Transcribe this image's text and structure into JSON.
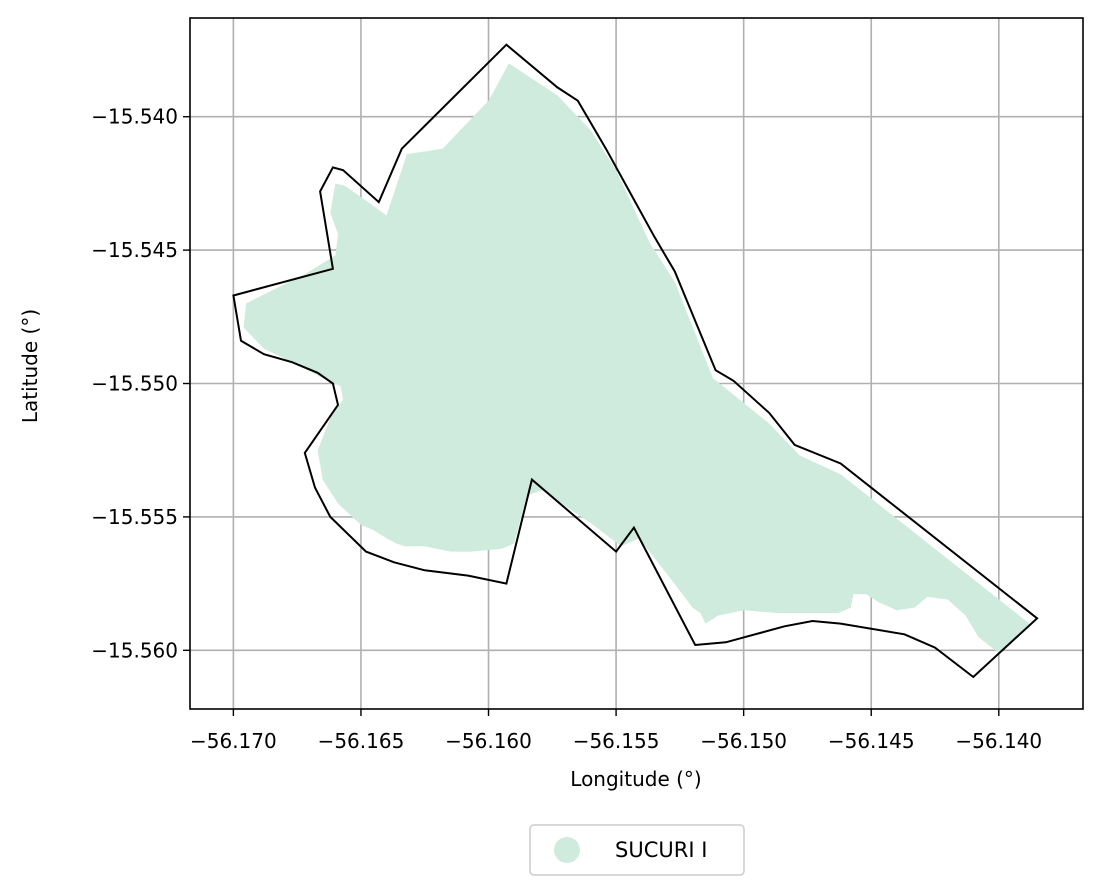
{
  "map": {
    "x_axis": {
      "label": "Longitude (°)",
      "range": [
        -56.1717,
        -56.1367
      ],
      "ticks": [
        {
          "value": -56.17,
          "label": "−56.170"
        },
        {
          "value": -56.165,
          "label": "−56.165"
        },
        {
          "value": -56.16,
          "label": "−56.160"
        },
        {
          "value": -56.155,
          "label": "−56.155"
        },
        {
          "value": -56.15,
          "label": "−56.150"
        },
        {
          "value": -56.145,
          "label": "−56.145"
        },
        {
          "value": -56.14,
          "label": "−56.140"
        }
      ]
    },
    "y_axis": {
      "label": "Latitude (°)",
      "range": [
        -15.5622,
        -15.5363
      ],
      "ticks": [
        {
          "value": -15.54,
          "label": "−15.540"
        },
        {
          "value": -15.545,
          "label": "−15.545"
        },
        {
          "value": -15.55,
          "label": "−15.550"
        },
        {
          "value": -15.555,
          "label": "−15.555"
        },
        {
          "value": -15.56,
          "label": "−15.560"
        }
      ]
    },
    "grid": true,
    "colors": {
      "fill": "#cfebdd",
      "boundary": "#000000",
      "grid": "#b0b0b0"
    },
    "legend": {
      "placement": "bottom-center",
      "entries": [
        {
          "label": "SUCURI I",
          "color": "#cfebdd"
        }
      ]
    },
    "boundary": [
      [
        -56.1593,
        -15.5373
      ],
      [
        -56.1573,
        -15.5389
      ],
      [
        -56.1565,
        -15.5394
      ],
      [
        -56.1554,
        -15.5412
      ],
      [
        -56.1535,
        -15.5445
      ],
      [
        -56.1527,
        -15.5458
      ],
      [
        -56.1511,
        -15.5495
      ],
      [
        -56.1504,
        -15.5499
      ],
      [
        -56.149,
        -15.5511
      ],
      [
        -56.148,
        -15.5523
      ],
      [
        -56.1462,
        -15.553
      ],
      [
        -56.1385,
        -15.5588
      ],
      [
        -56.141,
        -15.561
      ],
      [
        -56.1425,
        -15.5599
      ],
      [
        -56.1437,
        -15.5594
      ],
      [
        -56.1462,
        -15.559
      ],
      [
        -56.1473,
        -15.5589
      ],
      [
        -56.1484,
        -15.5591
      ],
      [
        -56.1507,
        -15.5597
      ],
      [
        -56.1519,
        -15.5598
      ],
      [
        -56.1543,
        -15.5554
      ],
      [
        -56.155,
        -15.5563
      ],
      [
        -56.1583,
        -15.5536
      ],
      [
        -56.1593,
        -15.5575
      ],
      [
        -56.1608,
        -15.5572
      ],
      [
        -56.1625,
        -15.557
      ],
      [
        -56.1637,
        -15.5567
      ],
      [
        -56.1648,
        -15.5563
      ],
      [
        -56.1662,
        -15.555
      ],
      [
        -56.1668,
        -15.5539
      ],
      [
        -56.1672,
        -15.5526
      ],
      [
        -56.1659,
        -15.5508
      ],
      [
        -56.1661,
        -15.55
      ],
      [
        -56.1667,
        -15.5496
      ],
      [
        -56.1677,
        -15.5492
      ],
      [
        -56.1688,
        -15.5489
      ],
      [
        -56.1697,
        -15.5484
      ],
      [
        -56.17,
        -15.5467
      ],
      [
        -56.1661,
        -15.5457
      ],
      [
        -56.1666,
        -15.5428
      ],
      [
        -56.1661,
        -15.5419
      ],
      [
        -56.1657,
        -15.542
      ],
      [
        -56.1643,
        -15.5432
      ],
      [
        -56.1634,
        -15.5412
      ]
    ],
    "area": [
      [
        -56.1592,
        -15.538
      ],
      [
        -56.1573,
        -15.5392
      ],
      [
        -56.156,
        -15.5405
      ],
      [
        -56.155,
        -15.542
      ],
      [
        -56.1537,
        -15.5447
      ],
      [
        -56.1527,
        -15.5462
      ],
      [
        -56.1512,
        -15.5498
      ],
      [
        -56.149,
        -15.5515
      ],
      [
        -56.1478,
        -15.5527
      ],
      [
        -56.1462,
        -15.5534
      ],
      [
        -56.1388,
        -15.559
      ],
      [
        -56.14,
        -15.5601
      ],
      [
        -56.1408,
        -15.5595
      ],
      [
        -56.1413,
        -15.5587
      ],
      [
        -56.142,
        -15.5581
      ],
      [
        -56.1428,
        -15.558
      ],
      [
        -56.1433,
        -15.5584
      ],
      [
        -56.144,
        -15.5585
      ],
      [
        -56.1447,
        -15.5582
      ],
      [
        -56.1452,
        -15.5579
      ],
      [
        -56.1457,
        -15.5579
      ],
      [
        -56.1458,
        -15.5584
      ],
      [
        -56.1463,
        -15.5586
      ],
      [
        -56.1475,
        -15.5586
      ],
      [
        -56.1487,
        -15.5586
      ],
      [
        -56.15,
        -15.5585
      ],
      [
        -56.151,
        -15.5587
      ],
      [
        -56.1515,
        -15.559
      ],
      [
        -56.1517,
        -15.5586
      ],
      [
        -56.152,
        -15.5584
      ],
      [
        -56.1528,
        -15.5574
      ],
      [
        -56.1541,
        -15.5558
      ],
      [
        -56.1548,
        -15.5561
      ],
      [
        -56.1559,
        -15.5553
      ],
      [
        -56.1579,
        -15.554
      ],
      [
        -56.1585,
        -15.5542
      ],
      [
        -56.1588,
        -15.5553
      ],
      [
        -56.159,
        -15.556
      ],
      [
        -56.1595,
        -15.5562
      ],
      [
        -56.1607,
        -15.5563
      ],
      [
        -56.1615,
        -15.5563
      ],
      [
        -56.1625,
        -15.5561
      ],
      [
        -56.1633,
        -15.5561
      ],
      [
        -56.1636,
        -15.556
      ],
      [
        -56.164,
        -15.5558
      ],
      [
        -56.1645,
        -15.5555
      ],
      [
        -56.165,
        -15.5553
      ],
      [
        -56.1659,
        -15.5545
      ],
      [
        -56.1665,
        -15.5536
      ],
      [
        -56.1667,
        -15.5525
      ],
      [
        -56.1662,
        -15.5513
      ],
      [
        -56.1657,
        -15.5506
      ],
      [
        -56.1658,
        -15.5501
      ],
      [
        -56.1665,
        -15.5498
      ],
      [
        -56.1675,
        -15.5493
      ],
      [
        -56.1688,
        -15.5487
      ],
      [
        -56.1696,
        -15.5479
      ],
      [
        -56.1695,
        -15.547
      ],
      [
        -56.1672,
        -15.5459
      ],
      [
        -56.166,
        -15.5452
      ],
      [
        -56.1659,
        -15.5444
      ],
      [
        -56.1662,
        -15.5436
      ],
      [
        -56.166,
        -15.5425
      ],
      [
        -56.1656,
        -15.5426
      ],
      [
        -56.164,
        -15.5437
      ],
      [
        -56.1632,
        -15.5414
      ],
      [
        -56.1618,
        -15.5412
      ],
      [
        -56.16,
        -15.5394
      ]
    ]
  }
}
